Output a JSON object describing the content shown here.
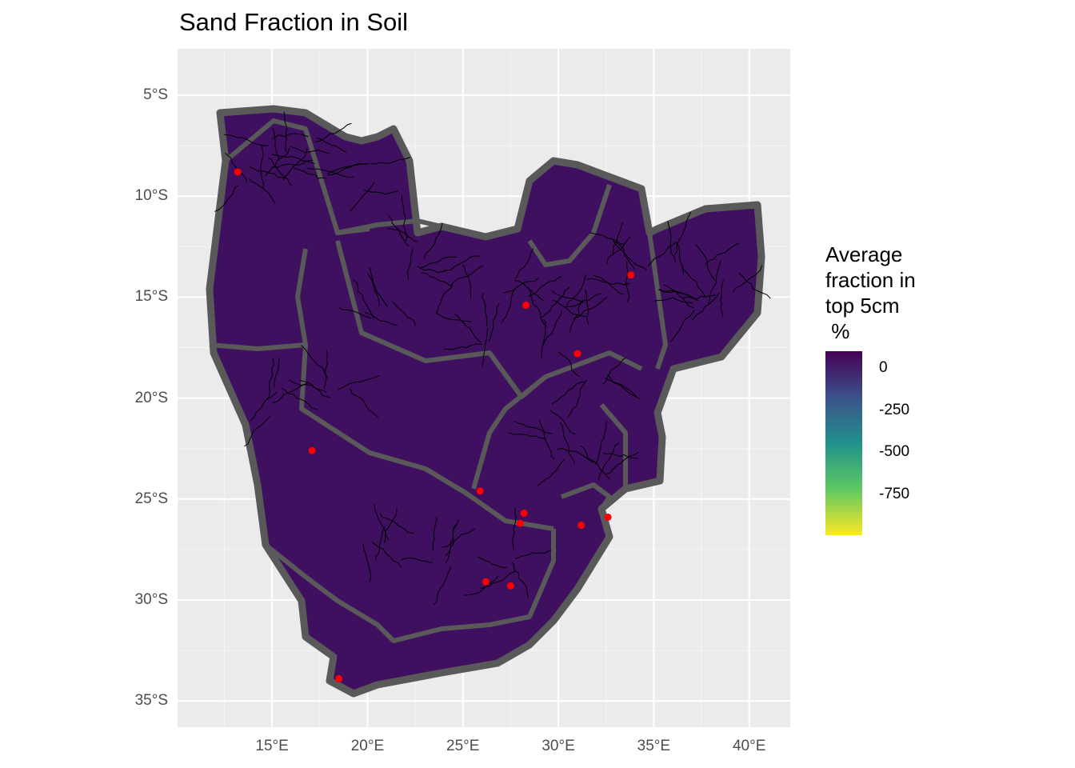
{
  "title": "Sand Fraction in Soil",
  "y_axis": {
    "ticks": [
      {
        "value": -5,
        "label": "5°S"
      },
      {
        "value": -10,
        "label": "10°S"
      },
      {
        "value": -15,
        "label": "15°S"
      },
      {
        "value": -20,
        "label": "20°S"
      },
      {
        "value": -25,
        "label": "25°S"
      },
      {
        "value": -30,
        "label": "30°S"
      },
      {
        "value": -35,
        "label": "35°S"
      }
    ],
    "range": [
      -36.3,
      -2.7
    ]
  },
  "x_axis": {
    "ticks": [
      {
        "value": 15,
        "label": "15°E"
      },
      {
        "value": 20,
        "label": "20°E"
      },
      {
        "value": 25,
        "label": "25°E"
      },
      {
        "value": 30,
        "label": "30°E"
      },
      {
        "value": 35,
        "label": "35°E"
      },
      {
        "value": 40,
        "label": "40°E"
      }
    ],
    "range": [
      10.05,
      42.15
    ]
  },
  "legend": {
    "title": "Average\nfraction in\ntop 5cm\n %",
    "ticks": [
      "0",
      "-250",
      "-500",
      "-750"
    ],
    "colors": [
      "#440154",
      "#3b528b",
      "#21918c",
      "#5ec962",
      "#fde725"
    ]
  },
  "map": {
    "fill_color": "#3f1060",
    "boundary_color": "#595959",
    "river_color": "#000000",
    "grid": true,
    "points_color": "#ff0000",
    "points": [
      {
        "lon": 13.2,
        "lat": -8.8
      },
      {
        "lon": 33.8,
        "lat": -13.9
      },
      {
        "lon": 28.3,
        "lat": -15.4
      },
      {
        "lon": 31.0,
        "lat": -17.8
      },
      {
        "lon": 17.1,
        "lat": -22.6
      },
      {
        "lon": 25.9,
        "lat": -24.6
      },
      {
        "lon": 28.2,
        "lat": -25.7
      },
      {
        "lon": 28.0,
        "lat": -26.2
      },
      {
        "lon": 32.6,
        "lat": -25.9
      },
      {
        "lon": 31.2,
        "lat": -26.3
      },
      {
        "lon": 26.2,
        "lat": -29.1
      },
      {
        "lon": 27.5,
        "lat": -29.3
      },
      {
        "lon": 18.5,
        "lat": -33.9
      }
    ]
  }
}
